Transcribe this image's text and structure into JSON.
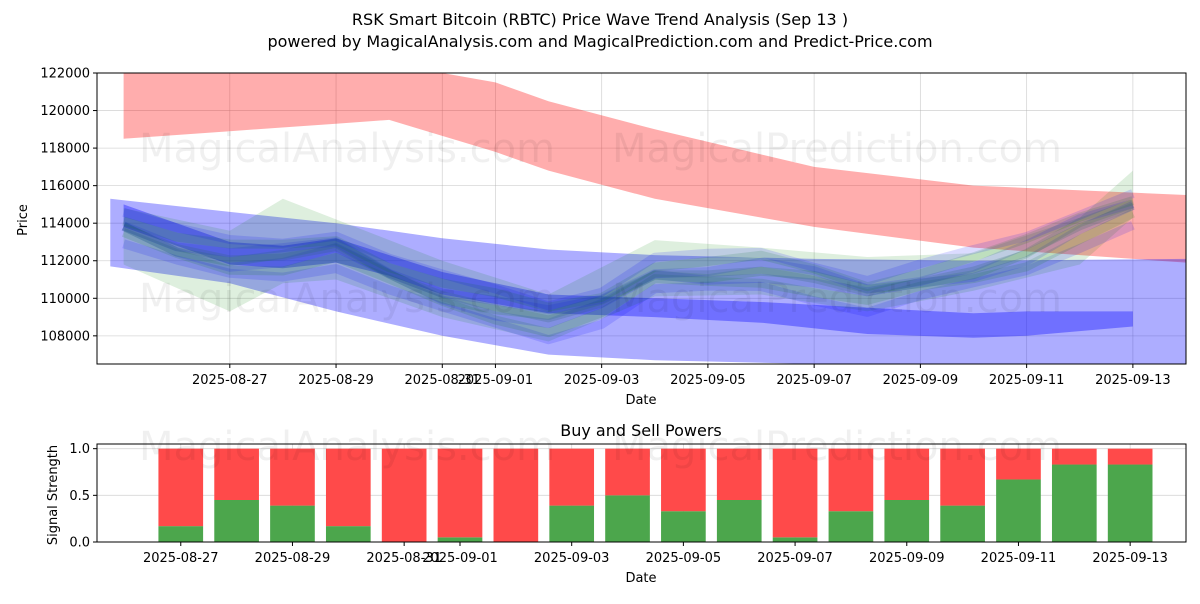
{
  "title": "RSK Smart Bitcoin (RBTC) Price Wave Trend Analysis (Sep 13 )",
  "subtitle": "powered by MagicalAnalysis.com and MagicalPrediction.com and Predict-Price.com",
  "watermarks": [
    "MagicalAnalysis.com",
    "MagicalPrediction.com"
  ],
  "colors": {
    "red_band": "#ff0000",
    "blue_band": "#0000ff",
    "green_band": "#008000",
    "buy_bar": "#4ca64c",
    "sell_bar": "#ff4a4a"
  },
  "chart_data": [
    {
      "type": "line",
      "xlabel": "Date",
      "ylabel": "Price",
      "xlim": [
        "2025-08-24T12:00",
        "2025-09-14T00:00"
      ],
      "ylim": [
        106500,
        122000
      ],
      "x_ticks": [
        "2025-08-27",
        "2025-08-29",
        "2025-08-31",
        "2025-09-01",
        "2025-09-03",
        "2025-09-05",
        "2025-09-07",
        "2025-09-09",
        "2025-09-11",
        "2025-09-13"
      ],
      "y_ticks": [
        108000,
        110000,
        112000,
        114000,
        116000,
        118000,
        120000,
        122000
      ],
      "grid": true,
      "bands": [
        {
          "color": "red",
          "x": [
            "2025-08-25",
            "2025-08-27",
            "2025-08-29",
            "2025-08-30",
            "2025-09-01",
            "2025-09-02",
            "2025-09-04",
            "2025-09-07",
            "2025-09-10",
            "2025-09-14"
          ],
          "upper": [
            122500,
            122500,
            122500,
            122500,
            121500,
            120500,
            119000,
            117000,
            116000,
            115500
          ],
          "lower": [
            118500,
            118900,
            119300,
            119500,
            117800,
            116800,
            115300,
            113800,
            112700,
            111900
          ]
        },
        {
          "color": "blue",
          "x": [
            "2025-08-24T18:00",
            "2025-08-27",
            "2025-08-29",
            "2025-08-31",
            "2025-09-02",
            "2025-09-04",
            "2025-09-07",
            "2025-09-10",
            "2025-09-14"
          ],
          "upper": [
            115300,
            114600,
            114000,
            113200,
            112600,
            112300,
            112100,
            112000,
            112100
          ],
          "lower": [
            111700,
            110800,
            109300,
            108000,
            107000,
            106700,
            106500,
            106300,
            106200
          ]
        },
        {
          "color": "blue",
          "x": [
            "2025-08-25",
            "2025-08-26",
            "2025-08-27",
            "2025-08-28",
            "2025-08-29",
            "2025-08-30",
            "2025-08-31",
            "2025-09-02",
            "2025-09-04",
            "2025-09-06",
            "2025-09-08",
            "2025-09-10",
            "2025-09-11",
            "2025-09-13"
          ],
          "upper": [
            115000,
            114000,
            113000,
            112800,
            113200,
            112300,
            111400,
            110200,
            110000,
            109800,
            109500,
            109200,
            109300,
            109300
          ],
          "lower": [
            113800,
            112800,
            111800,
            111600,
            111900,
            111200,
            110200,
            109200,
            109000,
            108700,
            108100,
            107900,
            108000,
            108500
          ]
        },
        {
          "color": "green",
          "x": [
            "2025-08-25",
            "2025-08-27",
            "2025-08-28",
            "2025-08-29",
            "2025-08-31",
            "2025-09-02",
            "2025-09-04",
            "2025-09-06",
            "2025-09-08",
            "2025-09-10",
            "2025-09-12",
            "2025-09-13"
          ],
          "upper": [
            114800,
            113600,
            115300,
            114200,
            112000,
            110200,
            113100,
            112700,
            112200,
            112400,
            114300,
            116800
          ],
          "lower": [
            111800,
            109300,
            110800,
            111000,
            109000,
            107700,
            110100,
            110200,
            109300,
            110400,
            111800,
            114300
          ]
        }
      ],
      "wave_lines": {
        "x": [
          "2025-08-25",
          "2025-08-26",
          "2025-08-27",
          "2025-08-28",
          "2025-08-29",
          "2025-08-30",
          "2025-08-31",
          "2025-09-01",
          "2025-09-02",
          "2025-09-03",
          "2025-09-04",
          "2025-09-05",
          "2025-09-06",
          "2025-09-07",
          "2025-09-08",
          "2025-09-09",
          "2025-09-10",
          "2025-09-11",
          "2025-09-12",
          "2025-09-13"
        ],
        "y": [
          113800,
          112700,
          112100,
          112200,
          112700,
          111300,
          110200,
          109500,
          108900,
          109700,
          111300,
          111300,
          111500,
          111000,
          110300,
          110900,
          111500,
          112400,
          113800,
          114900
        ]
      }
    },
    {
      "type": "bar",
      "stacked": true,
      "title": "Buy and Sell Powers",
      "xlabel": "Date",
      "ylabel": "Signal Strength",
      "ylim": [
        0,
        1.05
      ],
      "y_ticks": [
        0.0,
        0.5,
        1.0
      ],
      "x_ticks": [
        "2025-08-27",
        "2025-08-29",
        "2025-08-31",
        "2025-09-01",
        "2025-09-03",
        "2025-09-05",
        "2025-09-07",
        "2025-09-09",
        "2025-09-11",
        "2025-09-13"
      ],
      "categories": [
        "2025-08-27",
        "2025-08-28",
        "2025-08-29",
        "2025-08-30",
        "2025-08-31",
        "2025-09-01",
        "2025-09-02",
        "2025-09-03",
        "2025-09-04",
        "2025-09-05",
        "2025-09-06",
        "2025-09-07",
        "2025-09-08",
        "2025-09-09",
        "2025-09-10",
        "2025-09-11",
        "2025-09-12",
        "2025-09-13"
      ],
      "series": [
        {
          "values": [
            0.17,
            0.45,
            0.39,
            0.17,
            0.0,
            0.05,
            0.0,
            0.39,
            0.5,
            0.33,
            0.45,
            0.05,
            0.33,
            0.45,
            0.39,
            0.67,
            0.83,
            0.83
          ]
        },
        {
          "values": [
            0.83,
            0.55,
            0.61,
            0.83,
            1.0,
            0.95,
            1.0,
            0.61,
            0.5,
            0.67,
            0.55,
            0.95,
            0.67,
            0.55,
            0.61,
            0.33,
            0.17,
            0.17
          ]
        }
      ]
    }
  ]
}
